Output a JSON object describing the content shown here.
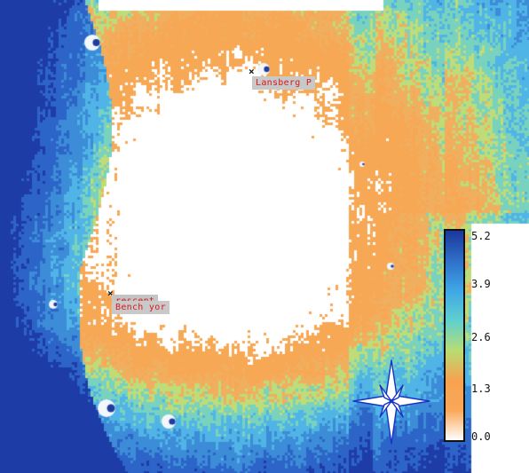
{
  "map": {
    "colormap": [
      "#ffffff",
      "#fdb46b",
      "#f5a14a",
      "#b6dc7a",
      "#6fd0c8",
      "#4fb3e6",
      "#3a78c8",
      "#2346a3",
      "#1a2f8a"
    ],
    "background": "#ffffff"
  },
  "features": [
    {
      "name": "Lansberg P",
      "marker": "x"
    },
    {
      "name": "Bench yor Crescent",
      "marker": "x",
      "overlapping_label_fragments": [
        "Bench yor",
        "rescent"
      ]
    }
  ],
  "legend": {
    "ticks": [
      "5.2",
      "3.9",
      "2.6",
      "1.3",
      "0.0"
    ],
    "min": 0.0,
    "max": 5.2,
    "gradient": [
      "#ffffff",
      "#f9a857",
      "#f7a24f",
      "#b8dd73",
      "#5fcfd0",
      "#3fa7e6",
      "#2e6fc9",
      "#1b3799"
    ]
  },
  "compass": {
    "stroke": "#1733c8",
    "fill": "#ffffff"
  }
}
